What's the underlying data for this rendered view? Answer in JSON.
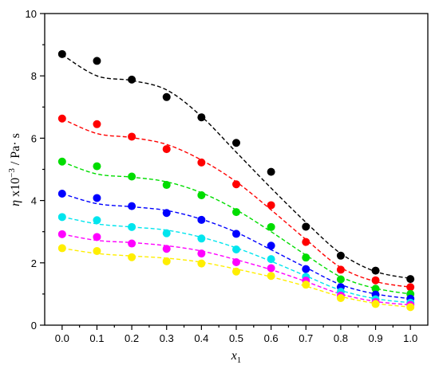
{
  "chart_data": {
    "type": "scatter",
    "title": "",
    "xlabel": {
      "symbol": "x",
      "subscript": "1"
    },
    "ylabel": {
      "symbol": "η",
      "mid": " x10",
      "exponent": "−3",
      "unit": " / Pa· s"
    },
    "xlim": [
      -0.05,
      1.05
    ],
    "ylim": [
      0,
      10
    ],
    "x_ticks": [
      "0.0",
      "0.1",
      "0.2",
      "0.3",
      "0.4",
      "0.5",
      "0.6",
      "0.7",
      "0.8",
      "0.9",
      "1.0"
    ],
    "y_ticks": [
      "0",
      "2",
      "4",
      "6",
      "8",
      "10"
    ],
    "grid": false,
    "legend": "none",
    "x": [
      0.0,
      0.1,
      0.2,
      0.3,
      0.4,
      0.5,
      0.6,
      0.7,
      0.8,
      0.9,
      1.0
    ],
    "series": [
      {
        "color": "#000000",
        "points": [
          8.7,
          8.48,
          7.88,
          7.32,
          6.67,
          5.85,
          4.92,
          3.16,
          2.23,
          1.75,
          1.48
        ],
        "fit": [
          8.68,
          8.0,
          7.85,
          7.55,
          6.7,
          5.55,
          4.4,
          3.3,
          2.3,
          1.72,
          1.5
        ]
      },
      {
        "color": "#ff0000",
        "points": [
          6.63,
          6.45,
          6.05,
          5.65,
          5.22,
          4.52,
          3.85,
          2.67,
          1.78,
          1.44,
          1.22
        ],
        "fit": [
          6.62,
          6.15,
          6.02,
          5.8,
          5.3,
          4.6,
          3.7,
          2.75,
          1.85,
          1.4,
          1.22
        ]
      },
      {
        "color": "#00dd00",
        "points": [
          5.25,
          5.1,
          4.77,
          4.5,
          4.17,
          3.63,
          3.15,
          2.17,
          1.47,
          1.17,
          1.0
        ],
        "fit": [
          5.24,
          4.85,
          4.75,
          4.6,
          4.25,
          3.7,
          3.0,
          2.25,
          1.55,
          1.18,
          1.0
        ]
      },
      {
        "color": "#0000ff",
        "points": [
          4.22,
          4.08,
          3.82,
          3.6,
          3.38,
          2.93,
          2.55,
          1.8,
          1.22,
          0.98,
          0.85
        ],
        "fit": [
          4.22,
          3.9,
          3.8,
          3.68,
          3.4,
          2.98,
          2.42,
          1.85,
          1.3,
          1.0,
          0.85
        ]
      },
      {
        "color": "#00e5ee",
        "points": [
          3.47,
          3.37,
          3.15,
          2.95,
          2.78,
          2.43,
          2.12,
          1.55,
          1.07,
          0.83,
          0.72
        ],
        "fit": [
          3.48,
          3.25,
          3.15,
          3.05,
          2.82,
          2.48,
          2.05,
          1.58,
          1.12,
          0.85,
          0.72
        ]
      },
      {
        "color": "#ff00ff",
        "points": [
          2.92,
          2.83,
          2.62,
          2.45,
          2.3,
          2.02,
          1.83,
          1.43,
          0.95,
          0.74,
          0.65
        ],
        "fit": [
          2.92,
          2.72,
          2.65,
          2.55,
          2.38,
          2.1,
          1.78,
          1.4,
          1.0,
          0.76,
          0.65
        ]
      },
      {
        "color": "#ffee00",
        "points": [
          2.47,
          2.38,
          2.18,
          2.05,
          1.98,
          1.72,
          1.58,
          1.3,
          0.87,
          0.68,
          0.58
        ],
        "fit": [
          2.47,
          2.3,
          2.22,
          2.15,
          2.02,
          1.8,
          1.55,
          1.25,
          0.92,
          0.7,
          0.58
        ]
      }
    ]
  }
}
